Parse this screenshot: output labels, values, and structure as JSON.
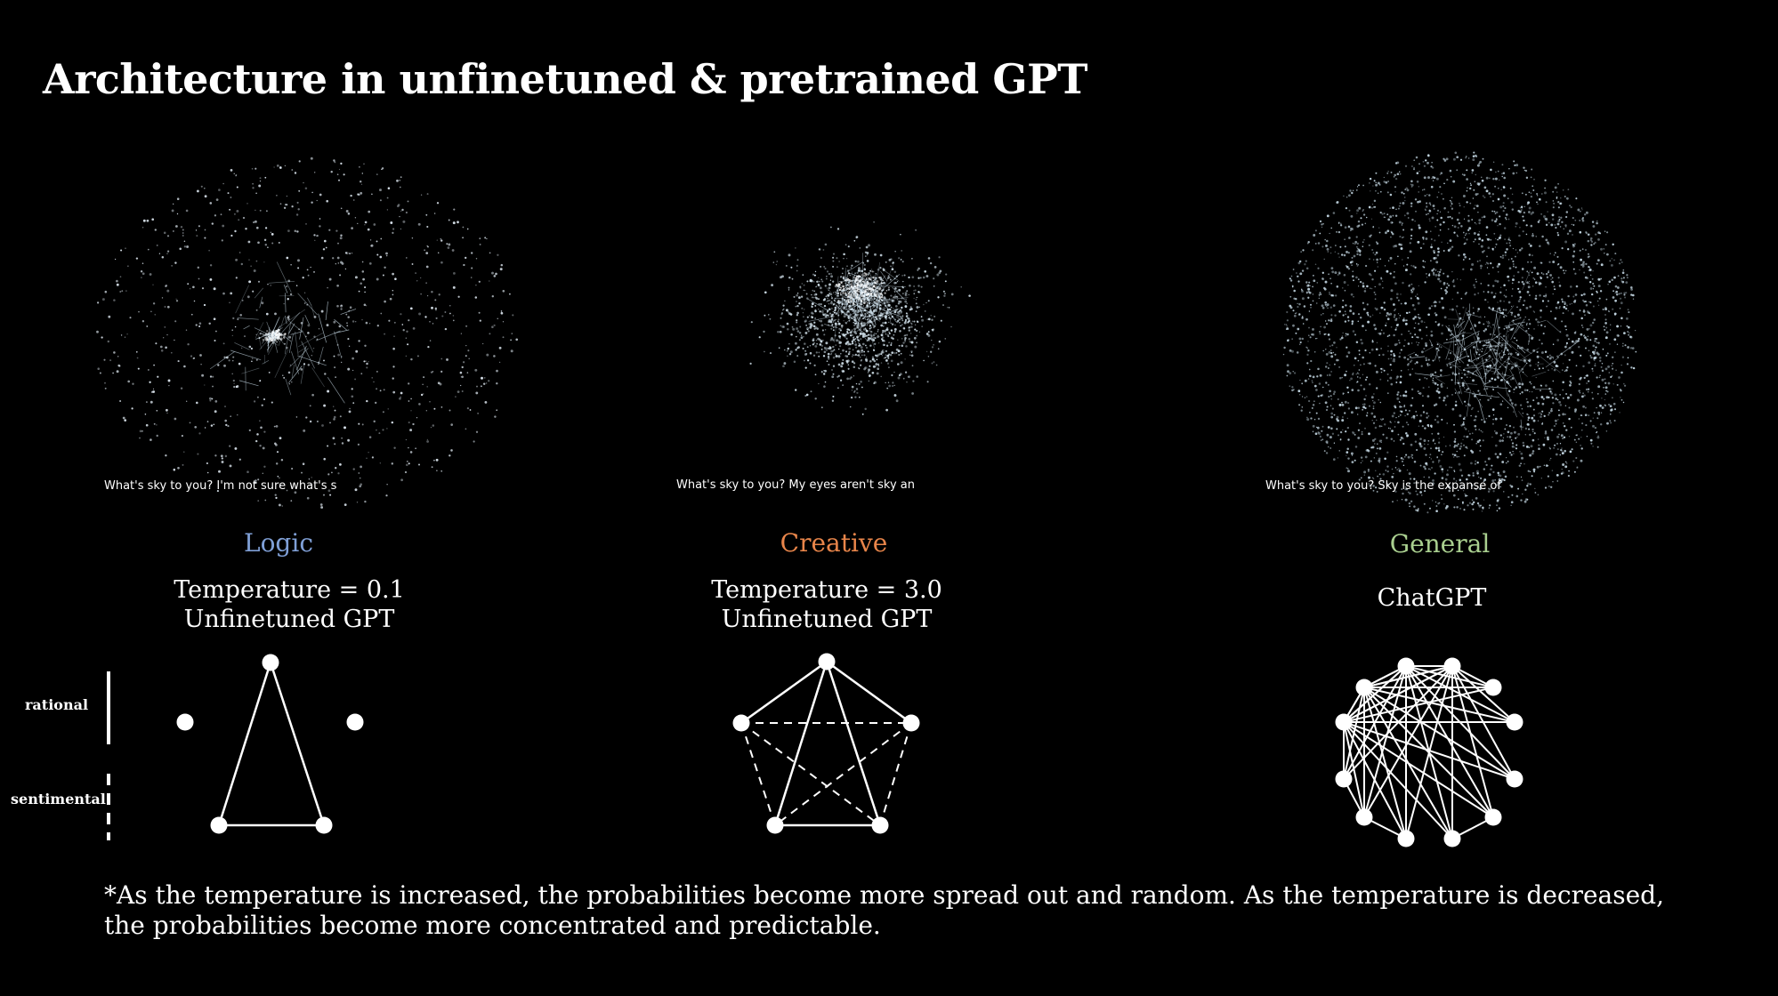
{
  "title": "Architecture in unfinetuned & pretrained GPT",
  "panels": [
    {
      "caption": "What's sky to you? I'm not sure what's s",
      "category": "Logic",
      "category_color": "#7f9fd6",
      "subtitle_line1": "Temperature = 0.1",
      "subtitle_line2": "Unfinetuned GPT"
    },
    {
      "caption": "What's sky to you? My eyes aren't sky an",
      "category": "Creative",
      "category_color": "#e8854a",
      "subtitle_line1": "Temperature = 3.0",
      "subtitle_line2": "Unfinetuned GPT"
    },
    {
      "caption": "What's sky to you? Sky is the expanse of",
      "category": "General",
      "category_color": "#a9cf8f",
      "subtitle_line1": "ChatGPT",
      "subtitle_line2": ""
    }
  ],
  "legend": {
    "solid_label": "rational",
    "dashed_label": "sentimental"
  },
  "footnote": "*As the temperature is increased, the probabilities become more spread out and random. As the temperature is decreased, the probabilities become more concentrated and predictable."
}
